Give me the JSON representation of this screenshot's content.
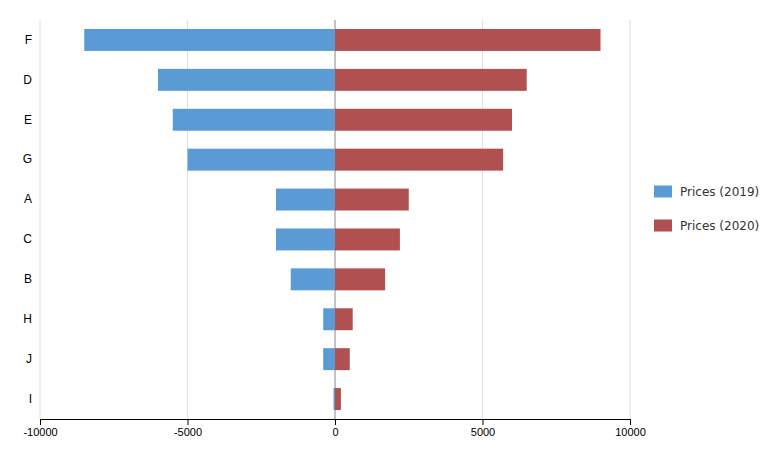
{
  "chart_data": {
    "type": "bar",
    "orientation": "horizontal",
    "categories": [
      "F",
      "D",
      "E",
      "G",
      "A",
      "C",
      "B",
      "H",
      "J",
      "I"
    ],
    "series": [
      {
        "name": "Prices (2019)",
        "color": "#5B9BD5",
        "values": [
          -8500,
          -6000,
          -5500,
          -5000,
          -2000,
          -2000,
          -1500,
          -400,
          -400,
          -50
        ]
      },
      {
        "name": "Prices (2020)",
        "color": "#B05050",
        "values": [
          9000,
          6500,
          6000,
          5700,
          2500,
          2200,
          1700,
          600,
          500,
          200
        ]
      }
    ],
    "xlim": [
      -10000,
      10000
    ],
    "xticks": [
      -10000,
      -5000,
      0,
      5000,
      10000
    ],
    "grid": true,
    "legend": "right"
  }
}
